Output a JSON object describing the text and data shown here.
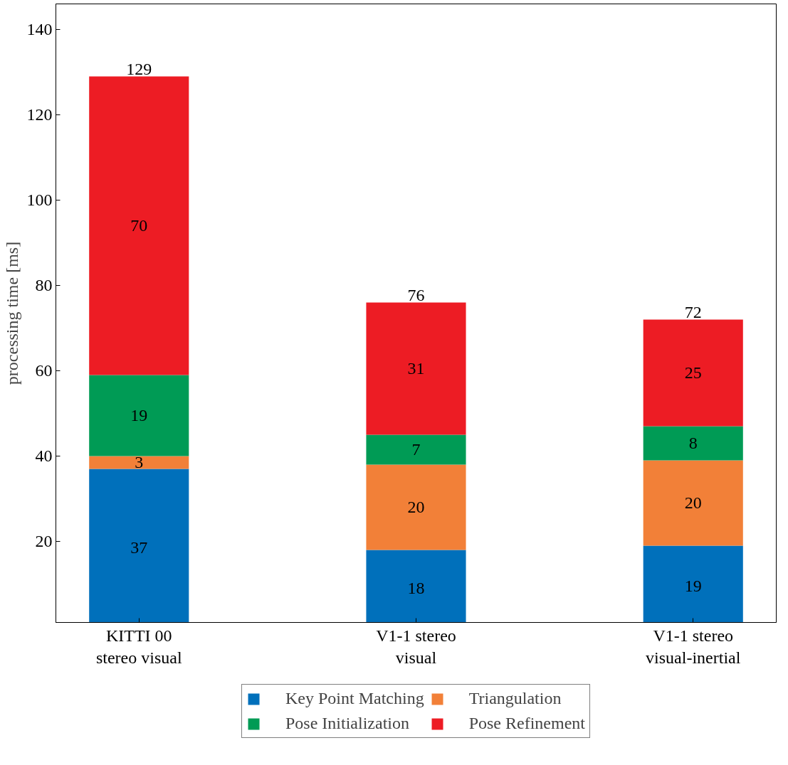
{
  "chart_data": {
    "type": "bar",
    "stacked": true,
    "ylabel": "processing time [ms]",
    "categories": [
      "KITTI 00\nstereo visual",
      "V1-1 stereo\nvisual",
      "V1-1 stereo\nvisual-inertial"
    ],
    "series": [
      {
        "name": "Key Point Matching",
        "color": "#0070bb",
        "values": [
          37,
          18,
          19
        ]
      },
      {
        "name": "Triangulation",
        "color": "#f28038",
        "values": [
          3,
          20,
          20
        ]
      },
      {
        "name": "Pose Initialization",
        "color": "#009b55",
        "values": [
          19,
          7,
          8
        ]
      },
      {
        "name": "Pose Refinement",
        "color": "#ed1c24",
        "values": [
          70,
          31,
          25
        ]
      }
    ],
    "totals": [
      "129",
      "76",
      "72"
    ],
    "data_labels": true,
    "ylim": [
      1,
      146
    ],
    "yticks": [
      20,
      40,
      60,
      80,
      100,
      120,
      140
    ],
    "grid": false,
    "legend": "bottom"
  }
}
